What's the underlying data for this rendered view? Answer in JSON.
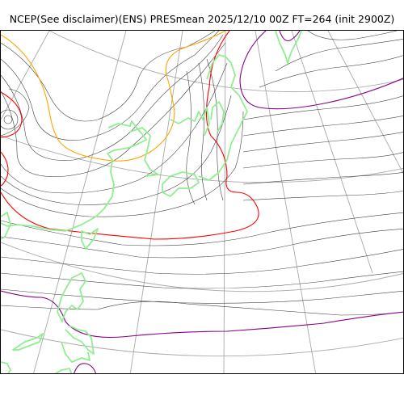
{
  "title": "NCEP(See disclaimer)(ENS) PRESmean 2025/12/10 00Z FT=264 (init 2900Z)",
  "colors": {
    "background": "#ffffff",
    "isobar": "#404040",
    "graticule": "#a8a8a8",
    "coastline": "#90ee90",
    "contour_orange": "#ffa500",
    "contour_red": "#ff0000",
    "contour_purple": "#8b008b"
  }
}
